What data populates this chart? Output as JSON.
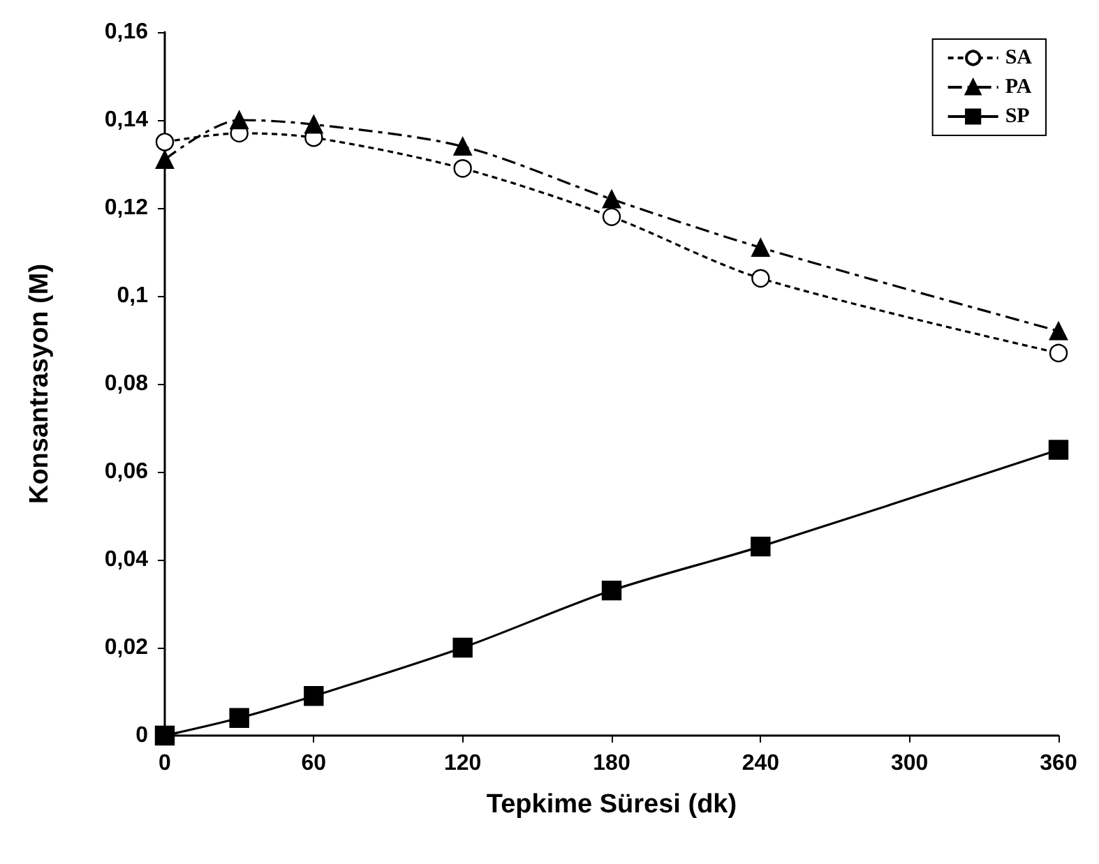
{
  "chart_data": {
    "type": "line",
    "xlabel": "Tepkime Süresi (dk)",
    "ylabel": "Konsantrasyon (M)",
    "x": [
      0,
      30,
      60,
      120,
      180,
      240,
      360
    ],
    "series": [
      {
        "name": "SA",
        "color": "#000000",
        "marker": "circle",
        "line_style": "dotted",
        "values": [
          0.135,
          0.137,
          0.136,
          0.129,
          0.118,
          0.104,
          0.087
        ]
      },
      {
        "name": "PA",
        "color": "#000000",
        "marker": "triangle",
        "line_style": "dashed",
        "values": [
          0.131,
          0.14,
          0.139,
          0.134,
          0.122,
          0.111,
          0.092
        ]
      },
      {
        "name": "SP",
        "color": "#000000",
        "marker": "square",
        "line_style": "solid",
        "values": [
          0,
          0.004,
          0.009,
          0.02,
          0.033,
          0.043,
          0.065
        ]
      }
    ],
    "xlim": [
      0,
      360
    ],
    "xticks": [
      0,
      60,
      120,
      180,
      240,
      300,
      360
    ],
    "ylim": [
      0,
      0.16
    ],
    "yticks": [
      0,
      {
        "value": 0.02,
        "label": "0,02"
      },
      {
        "value": 0.04,
        "label": "0,04"
      },
      {
        "value": 0.06,
        "label": "0,06"
      },
      {
        "value": 0.08,
        "label": "0,08"
      },
      {
        "value": 0.1,
        "label": "0,1"
      },
      {
        "value": 0.12,
        "label": "0,12"
      },
      {
        "value": 0.14,
        "label": "0,14"
      },
      {
        "value": 0.16,
        "label": "0,16"
      }
    ],
    "grid": false,
    "legend": "top right"
  }
}
